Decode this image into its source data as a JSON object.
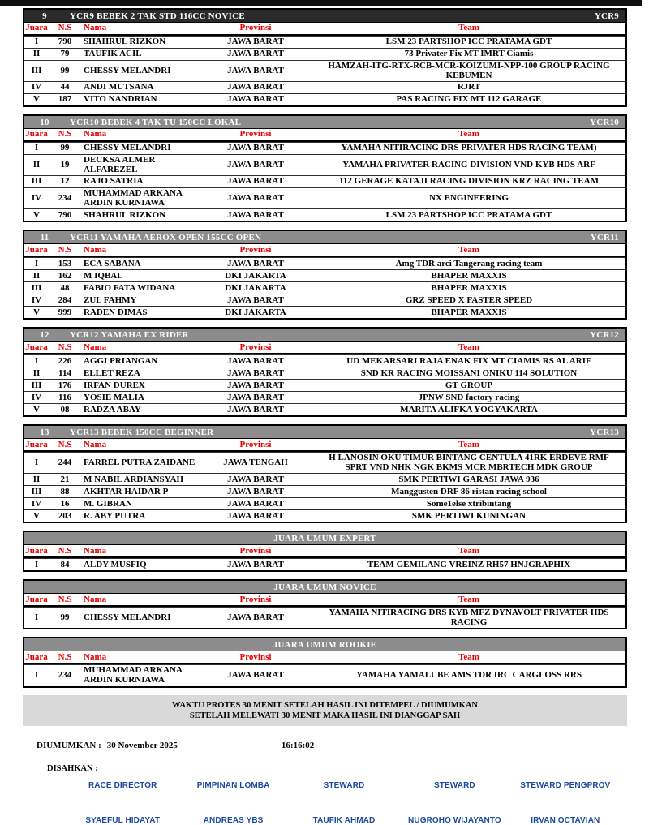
{
  "columns": [
    "Juara",
    "N.S",
    "Nama",
    "Provinsi",
    "Team"
  ],
  "tables": [
    {
      "no": "9",
      "title": "YCR9 BEBEK 2 TAK STD 116CC NOVICE",
      "code": "YCR9",
      "centered": false,
      "rows": [
        [
          "I",
          "790",
          "SHAHRUL RIZKON",
          "JAWA BARAT",
          "LSM 23 PARTSHOP ICC PRATAMA GDT"
        ],
        [
          "II",
          "79",
          "TAUFIK ACIL",
          "JAWA BARAT",
          "73 Privater Fix MT IMRT Ciamis"
        ],
        [
          "III",
          "99",
          "CHESSY MELANDRI",
          "JAWA BARAT",
          "HAMZAH-ITG-RTX-RCB-MCR-KOIZUMI-NPP-100 GROUP RACING KEBUMEN"
        ],
        [
          "IV",
          "44",
          "ANDI MUTSANA",
          "JAWA BARAT",
          "RJRT"
        ],
        [
          "V",
          "187",
          "VITO NANDRIAN",
          "JAWA BARAT",
          "PAS RACING FIX MT 112 GARAGE"
        ]
      ]
    },
    {
      "no": "10",
      "title": "YCR10 BEBEK 4 TAK TU 150CC LOKAL",
      "code": "YCR10",
      "centered": false,
      "rows": [
        [
          "I",
          "99",
          "CHESSY MELANDRI",
          "JAWA BARAT",
          "YAMAHA NITIRACING DRS PRIVATER HDS RACING TEAM)"
        ],
        [
          "II",
          "19",
          "DECKSA ALMER ALFAREZEL",
          "JAWA BARAT",
          "YAMAHA PRIVATER RACING DIVISION VND KYB HDS ARF"
        ],
        [
          "III",
          "12",
          "RAJO SATRIA",
          "JAWA BARAT",
          "112 GERAGE KATAJI RACING DIVISION KRZ RACING TEAM"
        ],
        [
          "IV",
          "234",
          "MUHAMMAD ARKANA ARDIN KURNIAWA",
          "JAWA BARAT",
          "NX ENGINEERING"
        ],
        [
          "V",
          "790",
          "SHAHRUL RIZKON",
          "JAWA BARAT",
          "LSM 23 PARTSHOP ICC PRATAMA GDT"
        ]
      ]
    },
    {
      "no": "11",
      "title": "YCR11 YAMAHA AEROX OPEN 155CC OPEN",
      "code": "YCR11",
      "centered": false,
      "rows": [
        [
          "I",
          "153",
          "ECA SABANA",
          "JAWA BARAT",
          "Amg TDR arci Tangerang racing team"
        ],
        [
          "II",
          "162",
          "M IQBAL",
          "DKI JAKARTA",
          "BHAPER MAXXIS"
        ],
        [
          "III",
          "48",
          "FABIO FATA WIDANA",
          "DKI JAKARTA",
          "BHAPER MAXXIS"
        ],
        [
          "IV",
          "284",
          "ZUL FAHMY",
          "JAWA BARAT",
          "GRZ SPEED X FASTER SPEED"
        ],
        [
          "V",
          "999",
          "RADEN DIMAS",
          "DKI JAKARTA",
          "BHAPER MAXXIS"
        ]
      ]
    },
    {
      "no": "12",
      "title": "YCR12 YAMAHA EX RIDER",
      "code": "YCR12",
      "centered": false,
      "rows": [
        [
          "I",
          "226",
          "AGGI PRIANGAN",
          "JAWA BARAT",
          "UD MEKARSARI RAJA ENAK FIX MT CIAMIS RS AL ARIF"
        ],
        [
          "II",
          "114",
          "ELLET REZA",
          "JAWA BARAT",
          "SND KR RACING MOISSANI ONIKU 114 SOLUTION"
        ],
        [
          "III",
          "176",
          "IRFAN DUREX",
          "JAWA BARAT",
          "GT GROUP"
        ],
        [
          "IV",
          "116",
          "YOSIE MALIA",
          "JAWA BARAT",
          "JPNW SND factory racing"
        ],
        [
          "V",
          "08",
          "RADZA ABAY",
          "JAWA BARAT",
          "MARITA ALIFKA YOGYAKARTA"
        ]
      ]
    },
    {
      "no": "13",
      "title": "YCR13 BEBEK 150CC BEGINNER",
      "code": "YCR13",
      "centered": false,
      "rows": [
        [
          "I",
          "244",
          "FARREL PUTRA ZAIDANE",
          "JAWA TENGAH",
          "H LANOSIN OKU TIMUR BINTANG CENTULA 41RK ERDEVE RMF SPRT VND NHK NGK BKMS MCR MBRTECH MDK GROUP"
        ],
        [
          "II",
          "21",
          "M NABIL ARDIANSYAH",
          "JAWA BARAT",
          "SMK PERTIWI GARASI JAWA 936"
        ],
        [
          "III",
          "88",
          "AKHTAR HAIDAR P",
          "JAWA BARAT",
          "Manggusten DRF 86 ristan racing school"
        ],
        [
          "IV",
          "16",
          "M. GIBRAN",
          "JAWA BARAT",
          "Some1else xtribintang"
        ],
        [
          "V",
          "203",
          "R. ABY PUTRA",
          "JAWA BARAT",
          "SMK PERTIWI KUNINGAN"
        ]
      ]
    },
    {
      "no": "",
      "title": "JUARA UMUM EXPERT",
      "code": "",
      "centered": true,
      "rows": [
        [
          "I",
          "84",
          "ALDY MUSFIQ",
          "JAWA BARAT",
          "TEAM GEMILANG VREINZ RH57 HNJGRAPHIX"
        ]
      ]
    },
    {
      "no": "",
      "title": "JUARA UMUM NOVICE",
      "code": "",
      "centered": true,
      "rows": [
        [
          "I",
          "99",
          "CHESSY MELANDRI",
          "JAWA BARAT",
          "YAMAHA NITIRACING DRS KYB MFZ DYNAVOLT PRIVATER HDS RACING"
        ]
      ]
    },
    {
      "no": "",
      "title": "JUARA UMUM ROOKIE",
      "code": "",
      "centered": true,
      "rows": [
        [
          "I",
          "234",
          "MUHAMMAD ARKANA ARDIN KURNIAWA",
          "JAWA BARAT",
          "YAMAHA YAMALUBE AMS TDR IRC CARGLOSS RRS"
        ]
      ]
    }
  ],
  "notice": {
    "line1": "WAKTU PROTES 30 MENIT SETELAH HASIL INI DITEMPEL / DIUMUMKAN",
    "line2": "SETELAH MELEWATI 30 MENIT MAKA HASIL INI DIANGGAP SAH"
  },
  "footer": {
    "announced_label": "DIUMUMKAN :",
    "announced_date": "30 November 2025",
    "announced_time": "16:16:02",
    "approved_label": "DISAHKAN :",
    "signatories": [
      {
        "role": "RACE DIRECTOR",
        "name": "SYAEFUL HIDAYAT"
      },
      {
        "role": "PIMPINAN LOMBA",
        "name": "ANDREAS YBS"
      },
      {
        "role": "STEWARD",
        "name": "TAUFIK AHMAD"
      },
      {
        "role": "STEWARD",
        "name": "NUGROHO WIJAYANTO"
      },
      {
        "role": "STEWARD PENGPROV",
        "name": "IRVAN OCTAVIAN"
      }
    ]
  },
  "colors": {
    "column_header_red": "#e60000",
    "title_bar_dark": "#2a2a2a",
    "title_bar_gray": "#8c8c8c",
    "notice_background": "#d9d9d9",
    "signature_blue": "#1b4a9e"
  }
}
